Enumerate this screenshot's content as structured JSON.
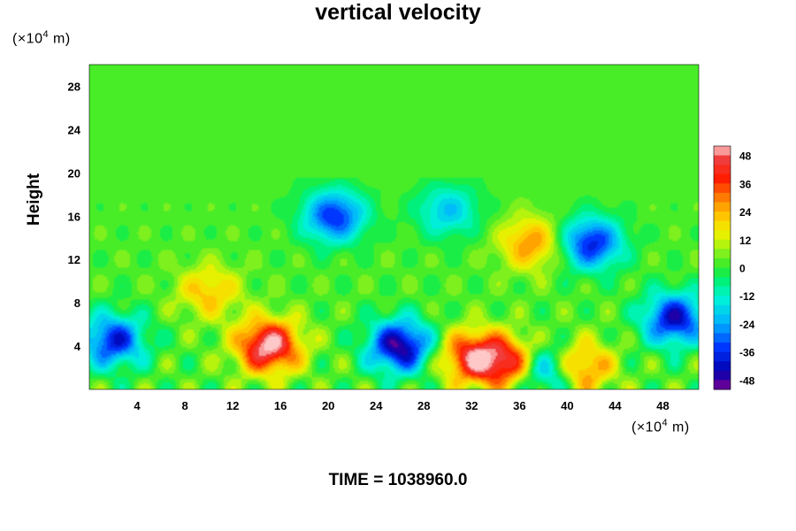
{
  "chart_data": {
    "type": "heatmap",
    "title": "vertical velocity",
    "ylabel": "Height",
    "xunit": {
      "pre": "(×10",
      "exp": "4",
      "post": " m)"
    },
    "yunit": {
      "pre": "(×10",
      "exp": "4",
      "post": " m)"
    },
    "xlim": [
      0,
      51
    ],
    "ylim": [
      0,
      30
    ],
    "xticks": [
      4,
      8,
      12,
      16,
      20,
      24,
      28,
      32,
      36,
      40,
      44,
      48
    ],
    "yticks": [
      4,
      8,
      12,
      16,
      20,
      24,
      28
    ],
    "colorbar": {
      "range": [
        -52,
        52
      ],
      "ticks": [
        48,
        36,
        24,
        12,
        0,
        -12,
        -24,
        -36,
        -48
      ]
    },
    "features": [
      {
        "x": 15.0,
        "y": 4.0,
        "value": 52
      },
      {
        "x": 26.0,
        "y": 4.0,
        "value": -50
      },
      {
        "x": 32.0,
        "y": 3.0,
        "value": 40
      },
      {
        "x": 35.0,
        "y": 2.5,
        "value": 38
      },
      {
        "x": 41.0,
        "y": 2.0,
        "value": 35
      },
      {
        "x": 2.0,
        "y": 4.5,
        "value": -40
      },
      {
        "x": 49.0,
        "y": 6.5,
        "value": -44
      },
      {
        "x": 42.0,
        "y": 13.5,
        "value": -40
      },
      {
        "x": 20.5,
        "y": 16.0,
        "value": -38
      },
      {
        "x": 38.5,
        "y": 1.8,
        "value": -34
      },
      {
        "x": 30.0,
        "y": 16.5,
        "value": -22
      },
      {
        "x": 37.0,
        "y": 13.5,
        "value": 26
      },
      {
        "x": 10.0,
        "y": 9.0,
        "value": 20
      }
    ],
    "extra_text": "TIME = 1038960.0"
  }
}
